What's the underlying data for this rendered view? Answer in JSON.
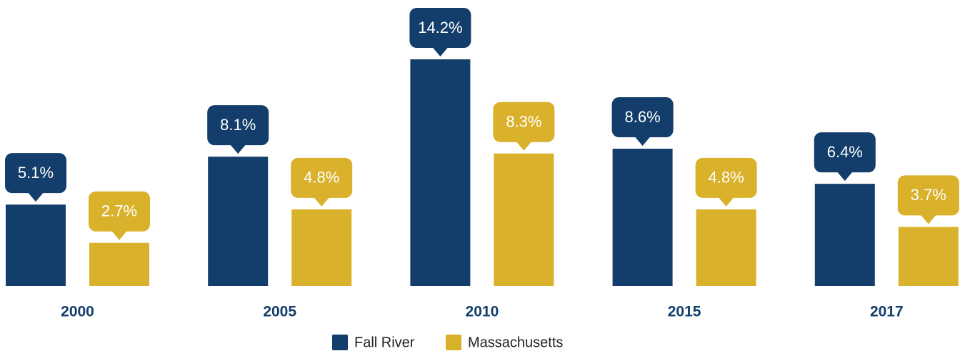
{
  "chart_data": {
    "type": "bar",
    "categories": [
      "2000",
      "2005",
      "2010",
      "2015",
      "2017"
    ],
    "series": [
      {
        "name": "Fall River",
        "color": "#133d6b",
        "values": [
          5.1,
          8.1,
          14.2,
          8.6,
          6.4
        ],
        "value_labels": [
          "5.1%",
          "8.1%",
          "14.2%",
          "8.6%",
          "6.4%"
        ]
      },
      {
        "name": "Massachusetts",
        "color": "#d9b12b",
        "values": [
          2.7,
          4.8,
          8.3,
          4.8,
          3.7
        ],
        "value_labels": [
          "2.7%",
          "4.8%",
          "8.3%",
          "4.8%",
          "3.7%"
        ]
      }
    ],
    "legend": "bottom"
  }
}
